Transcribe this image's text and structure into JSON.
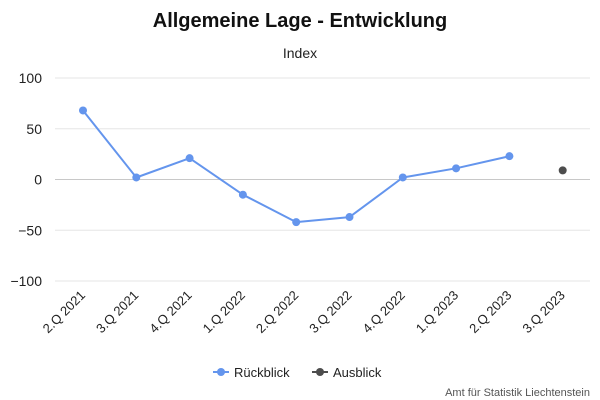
{
  "chart_data": {
    "type": "line",
    "title": "Allgemeine Lage - Entwicklung",
    "subtitle": "Index",
    "xlabel": "",
    "ylabel": "",
    "categories": [
      "2.Q 2021",
      "3.Q 2021",
      "4.Q 2021",
      "1.Q 2022",
      "2.Q 2022",
      "3.Q 2022",
      "4.Q 2022",
      "1.Q 2023",
      "2.Q 2023",
      "3.Q 2023"
    ],
    "ylim": [
      -100,
      100
    ],
    "yticks": [
      100,
      50,
      0,
      -50,
      -100
    ],
    "grid": true,
    "legend_position": "bottom",
    "series": [
      {
        "name": "Rückblick",
        "color": "#6495ed",
        "values": [
          68,
          2,
          21,
          -15,
          -42,
          -37,
          2,
          11,
          23,
          null
        ]
      },
      {
        "name": "Ausblick",
        "color": "#4d4d4d",
        "values": [
          null,
          null,
          null,
          null,
          null,
          null,
          null,
          null,
          null,
          9
        ]
      }
    ],
    "credit": "Amt für Statistik Liechtenstein"
  }
}
